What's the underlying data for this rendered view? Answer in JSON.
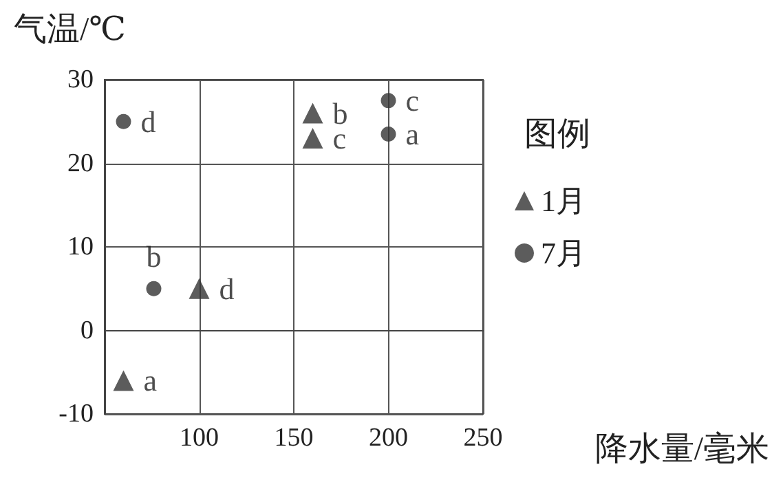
{
  "chart_data": {
    "type": "scatter",
    "xlabel": "降水量/毫米",
    "ylabel": "气温/℃",
    "legend_title": "图例",
    "legend": "right",
    "grid": true,
    "xlim": [
      50,
      250
    ],
    "xticks": [
      100,
      150,
      200,
      250
    ],
    "ylim": [
      -10,
      30
    ],
    "yticks": [
      -10,
      0,
      10,
      20,
      30
    ],
    "series": [
      {
        "name": "1月",
        "marker": "triangle",
        "color": "#333333",
        "x": [
          60,
          160,
          160,
          100
        ],
        "values": [
          -6,
          26,
          23,
          5
        ],
        "value_labels": [
          "a",
          "b",
          "c",
          "d"
        ]
      },
      {
        "name": "7月",
        "marker": "circle",
        "color": "#333333",
        "x": [
          200,
          76,
          200,
          60
        ],
        "values": [
          23.5,
          5,
          27.5,
          25
        ],
        "value_labels": [
          "a",
          "b",
          "c",
          "d"
        ]
      }
    ]
  }
}
